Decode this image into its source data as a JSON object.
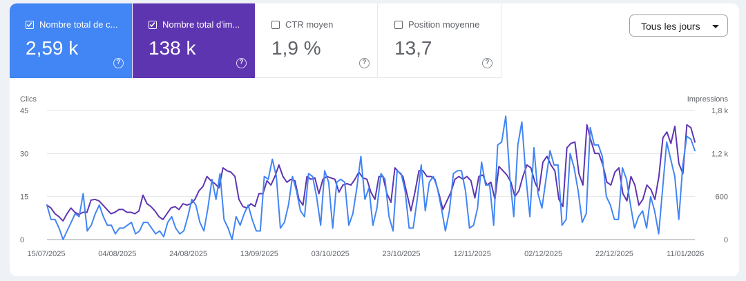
{
  "metrics": [
    {
      "label": "Nombre total de c...",
      "value": "2,59 k",
      "selected": true,
      "color": "#4285f4"
    },
    {
      "label": "Nombre total d'im...",
      "value": "138 k",
      "selected": true,
      "color": "#5e35b1"
    },
    {
      "label": "CTR moyen",
      "value": "1,9 %",
      "selected": false
    },
    {
      "label": "Position moyenne",
      "value": "13,7",
      "selected": false
    }
  ],
  "help_glyph": "?",
  "date_range": {
    "label": "Tous les jours"
  },
  "chart_data": {
    "type": "line",
    "left_axis": {
      "title": "Clics",
      "ticks": [
        "0",
        "15",
        "30",
        "45"
      ],
      "range": [
        0,
        45
      ]
    },
    "right_axis": {
      "title": "Impressions",
      "ticks": [
        "0",
        "600",
        "1,2 k",
        "1,8 k"
      ],
      "range": [
        0,
        1800
      ]
    },
    "x_tick_labels": [
      "15/07/2025",
      "04/08/2025",
      "24/08/2025",
      "13/09/2025",
      "03/10/2025",
      "23/10/2025",
      "12/11/2025",
      "02/12/2025",
      "22/12/2025",
      "11/01/2026"
    ],
    "grid": true,
    "series": [
      {
        "axis": "left",
        "color": "#4285f4",
        "values": [
          12,
          7,
          7,
          4,
          0,
          3,
          6,
          9,
          8,
          16,
          3,
          5,
          9,
          12,
          8,
          5,
          5,
          2,
          4,
          4,
          5,
          6,
          2,
          3,
          6,
          6,
          4,
          2,
          3,
          1,
          6,
          8,
          4,
          2,
          3,
          8,
          14,
          12,
          6,
          3,
          11,
          21,
          14,
          23,
          7,
          4,
          0,
          8,
          5,
          9,
          12,
          7,
          3,
          3,
          22,
          21,
          28,
          22,
          4,
          6,
          12,
          22,
          17,
          10,
          8,
          23,
          22,
          15,
          5,
          24,
          20,
          4,
          20,
          21,
          20,
          5,
          9,
          18,
          29,
          14,
          18,
          5,
          11,
          23,
          21,
          8,
          3,
          24,
          23,
          17,
          4,
          4,
          14,
          26,
          10,
          20,
          22,
          18,
          11,
          3,
          10,
          23,
          24,
          24,
          17,
          4,
          5,
          11,
          27,
          19,
          19,
          5,
          33,
          34,
          43,
          22,
          8,
          33,
          41,
          22,
          8,
          32,
          16,
          11,
          21,
          31,
          26,
          26,
          5,
          7,
          30,
          25,
          17,
          6,
          9,
          39,
          33,
          33,
          29,
          15,
          12,
          7,
          7,
          25,
          21,
          12,
          4,
          8,
          10,
          4,
          15,
          10,
          2,
          18,
          34,
          28,
          22,
          7,
          26,
          36,
          35,
          31
        ]
      },
      {
        "axis": "right",
        "color": "#5e35b1",
        "values": [
          480,
          440,
          360,
          320,
          260,
          360,
          440,
          380,
          350,
          380,
          380,
          550,
          560,
          540,
          480,
          420,
          360,
          380,
          420,
          420,
          380,
          380,
          360,
          400,
          620,
          500,
          460,
          400,
          320,
          280,
          360,
          440,
          460,
          420,
          500,
          480,
          500,
          560,
          680,
          740,
          880,
          820,
          780,
          720,
          1000,
          960,
          940,
          880,
          560,
          460,
          440,
          500,
          460,
          640,
          640,
          820,
          760,
          880,
          1040,
          880,
          800,
          840,
          820,
          560,
          480,
          880,
          840,
          860,
          640,
          840,
          880,
          860,
          840,
          660,
          760,
          780,
          760,
          840,
          940,
          860,
          840,
          660,
          560,
          880,
          880,
          640,
          520,
          1000,
          940,
          880,
          640,
          400,
          660,
          960,
          960,
          880,
          880,
          840,
          640,
          420,
          540,
          660,
          840,
          880,
          840,
          880,
          820,
          580,
          880,
          900,
          760,
          800,
          560,
          1020,
          960,
          900,
          800,
          600,
          680,
          880,
          1040,
          1000,
          800,
          680,
          1080,
          1160,
          1040,
          960,
          560,
          460,
          1280,
          1340,
          1360,
          920,
          760,
          1600,
          1380,
          1200,
          1200,
          1040,
          800,
          760,
          940,
          1000,
          640,
          540,
          880,
          760,
          480,
          560,
          760,
          700,
          560,
          880,
          1420,
          1500,
          1340,
          1580,
          1060,
          920,
          1600,
          1560,
          1360
        ]
      }
    ]
  }
}
